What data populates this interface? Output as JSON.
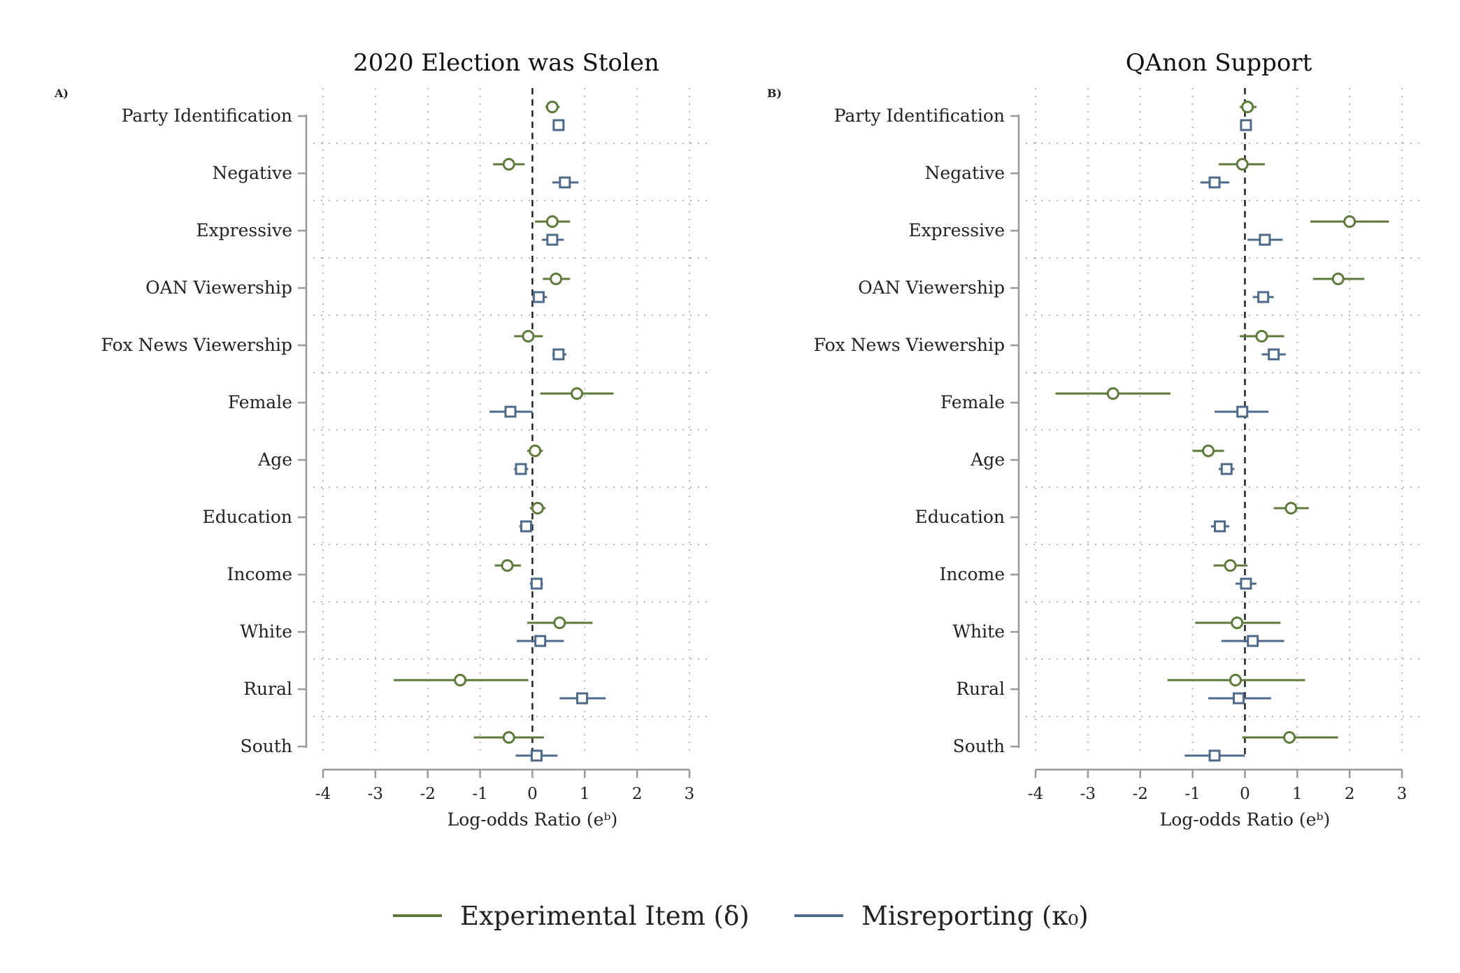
{
  "legend": {
    "experimental_label": "Experimental Item (δ)",
    "misreporting_label": "Misreporting (κ₀)"
  },
  "colors": {
    "experimental": "#5e7a3a",
    "misreporting": "#4d6a8a",
    "axis": "#999999",
    "grid": "#b5b5b5"
  },
  "chart_data": [
    {
      "type": "scatter",
      "panel_label": "A)",
      "title": "2020 Election was Stolen",
      "xlabel": "Log-odds Ratio (eᵇ)",
      "xlim": [
        -4,
        3
      ],
      "xticks": [
        "-4",
        "-3",
        "-2",
        "-1",
        "0",
        "1",
        "2",
        "3"
      ],
      "categories": [
        "Party Identification",
        "Negative",
        "Expressive",
        "OAN Viewership",
        "Fox News Viewership",
        "Female",
        "Age",
        "Education",
        "Income",
        "White",
        "Rural",
        "South"
      ],
      "series": [
        {
          "name": "Experimental Item (δ)",
          "marker": "circle",
          "estimates": [
            0.38,
            -0.45,
            0.38,
            0.45,
            -0.08,
            0.85,
            0.05,
            0.1,
            -0.48,
            0.52,
            -1.38,
            -0.45
          ],
          "ci_low": [
            0.25,
            -0.75,
            0.05,
            0.2,
            -0.35,
            0.15,
            -0.1,
            -0.05,
            -0.72,
            -0.1,
            -2.65,
            -1.12
          ],
          "ci_high": [
            0.52,
            -0.15,
            0.72,
            0.72,
            0.2,
            1.55,
            0.2,
            0.25,
            -0.22,
            1.15,
            -0.08,
            0.22
          ]
        },
        {
          "name": "Misreporting (κ₀)",
          "marker": "square",
          "estimates": [
            0.5,
            0.62,
            0.38,
            0.12,
            0.5,
            -0.42,
            -0.22,
            -0.12,
            0.08,
            0.15,
            0.95,
            0.08
          ],
          "ci_low": [
            0.4,
            0.38,
            0.18,
            0.0,
            0.38,
            -0.82,
            -0.35,
            -0.25,
            -0.05,
            -0.3,
            0.52,
            -0.32
          ],
          "ci_high": [
            0.6,
            0.88,
            0.6,
            0.28,
            0.65,
            0.0,
            -0.08,
            0.0,
            0.2,
            0.6,
            1.4,
            0.48
          ]
        }
      ]
    },
    {
      "type": "scatter",
      "panel_label": "B)",
      "title": "QAnon Support",
      "xlabel": "Log-odds Ratio (eᵇ)",
      "xlim": [
        -4,
        3
      ],
      "xticks": [
        "-4",
        "-3",
        "-2",
        "-1",
        "0",
        "1",
        "2",
        "3"
      ],
      "categories": [
        "Party Identification",
        "Negative",
        "Expressive",
        "OAN Viewership",
        "Fox News Viewership",
        "Female",
        "Age",
        "Education",
        "Income",
        "White",
        "Rural",
        "South"
      ],
      "series": [
        {
          "name": "Experimental Item (δ)",
          "marker": "circle",
          "estimates": [
            0.05,
            -0.05,
            2.0,
            1.78,
            0.32,
            -2.52,
            -0.7,
            0.88,
            -0.28,
            -0.15,
            -0.18,
            0.85
          ],
          "ci_low": [
            -0.1,
            -0.5,
            1.25,
            1.3,
            -0.1,
            -3.62,
            -1.0,
            0.55,
            -0.6,
            -0.95,
            -1.48,
            -0.05
          ],
          "ci_high": [
            0.22,
            0.38,
            2.75,
            2.28,
            0.75,
            -1.42,
            -0.4,
            1.22,
            0.05,
            0.68,
            1.15,
            1.78
          ]
        },
        {
          "name": "Misreporting (κ₀)",
          "marker": "square",
          "estimates": [
            0.02,
            -0.58,
            0.38,
            0.35,
            0.55,
            -0.05,
            -0.35,
            -0.48,
            0.02,
            0.15,
            -0.12,
            -0.58
          ],
          "ci_low": [
            -0.08,
            -0.85,
            0.05,
            0.15,
            0.32,
            -0.58,
            -0.5,
            -0.65,
            -0.18,
            -0.45,
            -0.7,
            -1.15
          ],
          "ci_high": [
            0.12,
            -0.3,
            0.72,
            0.55,
            0.78,
            0.45,
            -0.2,
            -0.3,
            0.22,
            0.75,
            0.5,
            0.0
          ]
        }
      ]
    }
  ]
}
